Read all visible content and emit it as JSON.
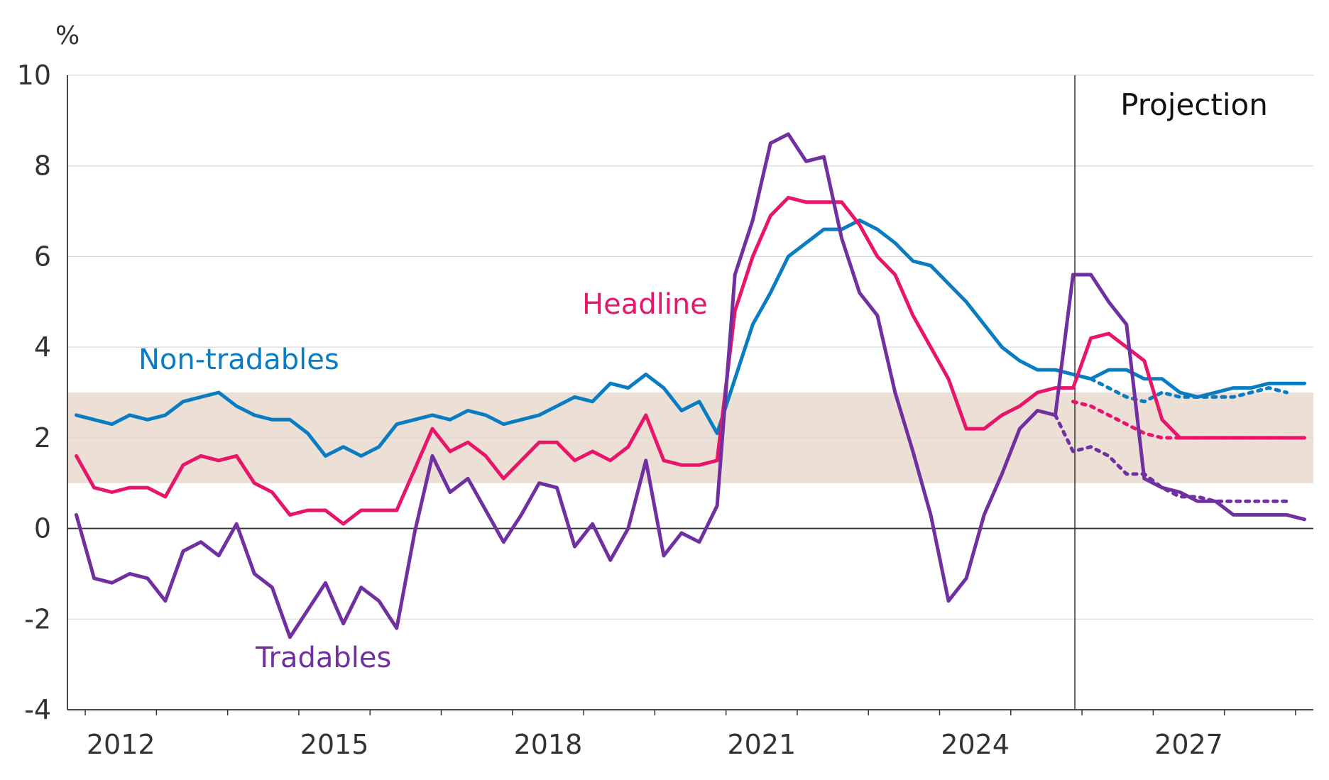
{
  "chart_data": {
    "type": "line",
    "y_unit": "%",
    "ylim": [
      -4,
      10
    ],
    "y_ticks": [
      "10",
      "8",
      "6",
      "4",
      "2",
      "0",
      "-2",
      "-4"
    ],
    "x_ticks": [
      "2012",
      "2015",
      "2018",
      "2021",
      "2024",
      "2027"
    ],
    "xlim": [
      2011.75,
      2029.25
    ],
    "grid": true,
    "target_band": [
      1,
      3
    ],
    "projection_start": 2025.9,
    "projection_label": "Projection",
    "colors": {
      "headline": "#e8166a",
      "nontradables": "#0a7cc1",
      "tradables": "#7030a0",
      "band": "#ecdfd6",
      "grid": "#d9d9d9",
      "axis": "#333333"
    },
    "series": [
      {
        "key": "nontradables",
        "name": "Non-tradables",
        "x": [
          2011.875,
          2012.125,
          2012.375,
          2012.625,
          2012.875,
          2013.125,
          2013.375,
          2013.625,
          2013.875,
          2014.125,
          2014.375,
          2014.625,
          2014.875,
          2015.125,
          2015.375,
          2015.625,
          2015.875,
          2016.125,
          2016.375,
          2016.625,
          2016.875,
          2017.125,
          2017.375,
          2017.625,
          2017.875,
          2018.125,
          2018.375,
          2018.625,
          2018.875,
          2019.125,
          2019.375,
          2019.625,
          2019.875,
          2020.125,
          2020.375,
          2020.625,
          2020.875,
          2021.125,
          2021.375,
          2021.625,
          2021.875,
          2022.125,
          2022.375,
          2022.625,
          2022.875,
          2023.125,
          2023.375,
          2023.625,
          2023.875,
          2024.125,
          2024.375,
          2024.625,
          2024.875,
          2025.125,
          2025.375,
          2025.625,
          2025.875,
          2026.125,
          2026.375,
          2026.625,
          2026.875,
          2027.125,
          2027.375,
          2027.625,
          2027.875,
          2028.125,
          2028.375,
          2028.625,
          2028.875,
          2029.125
        ],
        "y": [
          2.5,
          2.4,
          2.3,
          2.5,
          2.4,
          2.5,
          2.8,
          2.9,
          3.0,
          2.7,
          2.5,
          2.4,
          2.4,
          2.1,
          1.6,
          1.8,
          1.6,
          1.8,
          2.3,
          2.4,
          2.5,
          2.4,
          2.6,
          2.5,
          2.3,
          2.4,
          2.5,
          2.7,
          2.9,
          2.8,
          3.2,
          3.1,
          3.4,
          3.1,
          2.6,
          2.8,
          2.1,
          3.3,
          4.5,
          5.2,
          6.0,
          6.3,
          6.6,
          6.6,
          6.8,
          6.6,
          6.3,
          5.9,
          5.8,
          5.4,
          5.0,
          4.5,
          4.0,
          3.7,
          3.5,
          3.5,
          3.4,
          3.3,
          3.5,
          3.5,
          3.3,
          3.3,
          3.0,
          2.9,
          3.0,
          3.1,
          3.1,
          3.2,
          3.2,
          3.2
        ],
        "projection_alt": {
          "x": [
            2025.875,
            2026.125,
            2026.375,
            2026.625,
            2026.875,
            2027.125,
            2027.375,
            2027.625,
            2027.875,
            2028.125,
            2028.375,
            2028.625,
            2028.875
          ],
          "y": [
            3.4,
            3.3,
            3.1,
            2.9,
            2.8,
            3.0,
            2.9,
            2.9,
            2.9,
            2.9,
            3.0,
            3.1,
            3.0
          ]
        }
      },
      {
        "key": "headline",
        "name": "Headline",
        "x": [
          2011.875,
          2012.125,
          2012.375,
          2012.625,
          2012.875,
          2013.125,
          2013.375,
          2013.625,
          2013.875,
          2014.125,
          2014.375,
          2014.625,
          2014.875,
          2015.125,
          2015.375,
          2015.625,
          2015.875,
          2016.125,
          2016.375,
          2016.625,
          2016.875,
          2017.125,
          2017.375,
          2017.625,
          2017.875,
          2018.125,
          2018.375,
          2018.625,
          2018.875,
          2019.125,
          2019.375,
          2019.625,
          2019.875,
          2020.125,
          2020.375,
          2020.625,
          2020.875,
          2021.125,
          2021.375,
          2021.625,
          2021.875,
          2022.125,
          2022.375,
          2022.625,
          2022.875,
          2023.125,
          2023.375,
          2023.625,
          2023.875,
          2024.125,
          2024.375,
          2024.625,
          2024.875,
          2025.125,
          2025.375,
          2025.625,
          2025.875,
          2026.125,
          2026.375,
          2026.625,
          2026.875,
          2027.125,
          2027.375,
          2027.625,
          2027.875,
          2028.125,
          2028.375,
          2028.625,
          2028.875,
          2029.125
        ],
        "y": [
          1.6,
          0.9,
          0.8,
          0.9,
          0.9,
          0.7,
          1.4,
          1.6,
          1.5,
          1.6,
          1.0,
          0.8,
          0.3,
          0.4,
          0.4,
          0.1,
          0.4,
          0.4,
          0.4,
          1.3,
          2.2,
          1.7,
          1.9,
          1.6,
          1.1,
          1.5,
          1.9,
          1.9,
          1.5,
          1.7,
          1.5,
          1.8,
          2.5,
          1.5,
          1.4,
          1.4,
          1.5,
          4.8,
          6.0,
          6.9,
          7.3,
          7.2,
          7.2,
          7.2,
          6.7,
          6.0,
          5.6,
          4.7,
          4.0,
          3.3,
          2.2,
          2.2,
          2.5,
          2.7,
          3.0,
          3.1,
          3.1,
          4.2,
          4.3,
          4.0,
          3.7,
          2.4,
          2.0,
          2.0,
          2.0,
          2.0,
          2.0,
          2.0,
          2.0,
          2.0
        ],
        "projection_alt": {
          "x": [
            2025.875,
            2026.125,
            2026.375,
            2026.625,
            2026.875,
            2027.125,
            2027.375,
            2027.625,
            2027.875,
            2028.125,
            2028.375,
            2028.625,
            2028.875
          ],
          "y": [
            2.8,
            2.7,
            2.5,
            2.3,
            2.1,
            2.0,
            2.0,
            2.0,
            2.0,
            2.0,
            2.0,
            2.0,
            2.0
          ]
        }
      },
      {
        "key": "tradables",
        "name": "Tradables",
        "x": [
          2011.875,
          2012.125,
          2012.375,
          2012.625,
          2012.875,
          2013.125,
          2013.375,
          2013.625,
          2013.875,
          2014.125,
          2014.375,
          2014.625,
          2014.875,
          2015.125,
          2015.375,
          2015.625,
          2015.875,
          2016.125,
          2016.375,
          2016.625,
          2016.875,
          2017.125,
          2017.375,
          2017.625,
          2017.875,
          2018.125,
          2018.375,
          2018.625,
          2018.875,
          2019.125,
          2019.375,
          2019.625,
          2019.875,
          2020.125,
          2020.375,
          2020.625,
          2020.875,
          2021.125,
          2021.375,
          2021.625,
          2021.875,
          2022.125,
          2022.375,
          2022.625,
          2022.875,
          2023.125,
          2023.375,
          2023.625,
          2023.875,
          2024.125,
          2024.375,
          2024.625,
          2024.875,
          2025.125,
          2025.375,
          2025.625,
          2025.875,
          2026.125,
          2026.375,
          2026.625,
          2026.875,
          2027.125,
          2027.375,
          2027.625,
          2027.875,
          2028.125,
          2028.375,
          2028.625,
          2028.875,
          2029.125
        ],
        "y": [
          0.3,
          -1.1,
          -1.2,
          -1.0,
          -1.1,
          -1.6,
          -0.5,
          -0.3,
          -0.6,
          0.1,
          -1.0,
          -1.3,
          -2.4,
          -1.8,
          -1.2,
          -2.1,
          -1.3,
          -1.6,
          -2.2,
          -0.1,
          1.6,
          0.8,
          1.1,
          0.4,
          -0.3,
          0.3,
          1.0,
          0.9,
          -0.4,
          0.1,
          -0.7,
          0.0,
          1.5,
          -0.6,
          -0.1,
          -0.3,
          0.5,
          5.6,
          6.8,
          8.5,
          8.7,
          8.1,
          8.2,
          6.4,
          5.2,
          4.7,
          3.0,
          1.7,
          0.3,
          -1.6,
          -1.1,
          0.3,
          1.2,
          2.2,
          2.6,
          2.5,
          5.6,
          5.6,
          5.0,
          4.5,
          1.1,
          0.9,
          0.8,
          0.6,
          0.6,
          0.3,
          0.3,
          0.3,
          0.3,
          0.2
        ],
        "projection_alt": {
          "x": [
            2025.625,
            2025.875,
            2026.125,
            2026.375,
            2026.625,
            2026.875,
            2027.125,
            2027.375,
            2027.625,
            2027.875,
            2028.125,
            2028.375,
            2028.625,
            2028.875
          ],
          "y": [
            2.5,
            1.7,
            1.8,
            1.6,
            1.2,
            1.2,
            0.9,
            0.7,
            0.7,
            0.6,
            0.6,
            0.6,
            0.6,
            0.6
          ]
        }
      }
    ]
  }
}
